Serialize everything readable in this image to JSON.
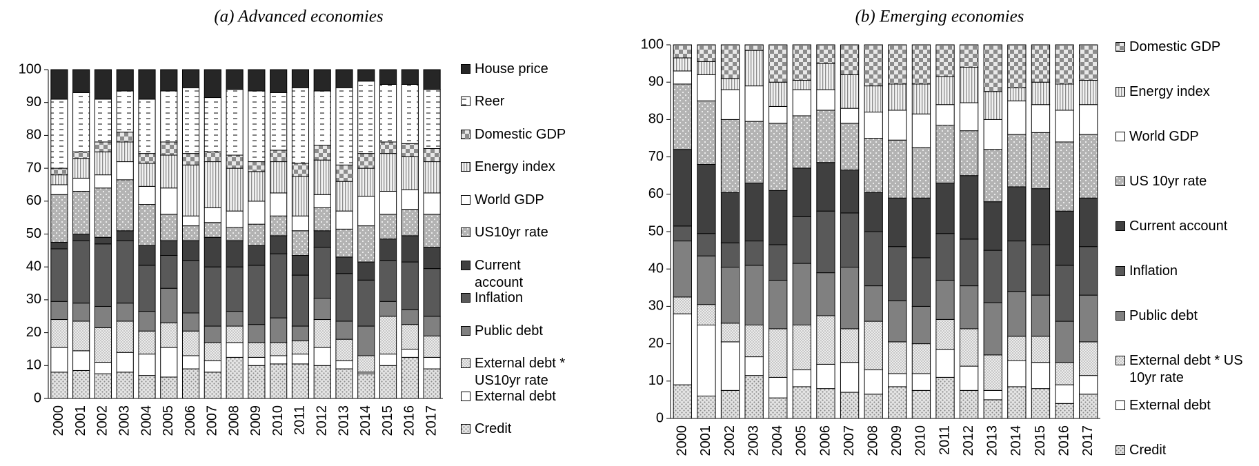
{
  "chart_data": [
    {
      "type": "bar",
      "stacked": true,
      "title": "(a) Advanced economies",
      "categories": [
        "2000",
        "2001",
        "2002",
        "2003",
        "2004",
        "2005",
        "2006",
        "2007",
        "2008",
        "2009",
        "2010",
        "2011",
        "2012",
        "2013",
        "2014",
        "2015",
        "2016",
        "2017"
      ],
      "ylim": [
        0,
        100
      ],
      "yticks": [
        0,
        10,
        20,
        30,
        40,
        50,
        60,
        70,
        80,
        90,
        100
      ],
      "series": [
        {
          "name": "Credit",
          "color": "#d9d9d9",
          "pattern": "dots",
          "values": [
            8,
            8.5,
            7.5,
            8,
            7,
            6.5,
            9,
            8,
            12.5,
            10,
            10.5,
            10.5,
            10,
            9,
            7.5,
            10,
            12.5,
            9
          ]
        },
        {
          "name": "External debt",
          "color": "#ffffff",
          "pattern": "solid",
          "values": [
            7.5,
            6,
            3.5,
            6,
            6.5,
            9,
            4,
            3.5,
            4.5,
            2.5,
            2.5,
            3,
            5.5,
            2.5,
            0.5,
            3.5,
            2.5,
            3.5
          ]
        },
        {
          "name": "External debt * US10yr rate",
          "color": "#e6e6e6",
          "pattern": "hatch",
          "values": [
            8.5,
            9,
            10.5,
            9.5,
            7,
            7.5,
            7.5,
            5.5,
            5,
            4.5,
            4,
            4,
            8.5,
            6.5,
            5,
            11.5,
            7.5,
            6.5
          ]
        },
        {
          "name": "Public debt",
          "color": "#808080",
          "pattern": "solid",
          "values": [
            5.5,
            5.5,
            6.5,
            5.5,
            6,
            10.5,
            5.5,
            5,
            4.5,
            5.5,
            7.5,
            4.5,
            6.5,
            5.5,
            9,
            4.5,
            4.5,
            6
          ]
        },
        {
          "name": "Inflation",
          "color": "#595959",
          "pattern": "solid",
          "values": [
            16,
            19,
            19,
            19,
            14,
            10,
            16,
            18,
            13.5,
            18,
            19.5,
            15.5,
            15.5,
            14.5,
            14,
            12.5,
            14.5,
            14.5
          ]
        },
        {
          "name": "Current account",
          "color": "#404040",
          "pattern": "solid",
          "values": [
            2,
            2,
            2,
            3,
            6,
            4.5,
            6,
            9,
            8,
            6,
            5.5,
            6,
            5,
            5,
            5.5,
            6.5,
            8,
            6.5
          ]
        },
        {
          "name": "US10yr rate",
          "color": "#bfbfbf",
          "pattern": "whitedots",
          "values": [
            14.5,
            13,
            15,
            15.5,
            12.5,
            8,
            4.5,
            4.5,
            4,
            6.5,
            6,
            7.5,
            7,
            8.5,
            11,
            7.5,
            8,
            10
          ]
        },
        {
          "name": "World GDP",
          "color": "#ffffff",
          "pattern": "solid",
          "values": [
            3,
            4,
            4,
            5.5,
            5.5,
            8,
            3,
            4.5,
            5,
            7,
            7,
            4.5,
            4,
            5.5,
            9,
            7,
            6,
            6.5
          ]
        },
        {
          "name": "Energy index",
          "color": "#e6e6e6",
          "pattern": "vlines",
          "values": [
            3,
            6,
            7,
            6,
            7,
            10,
            15.5,
            14,
            13,
            9,
            9.5,
            12,
            10.5,
            9,
            8.5,
            11.5,
            10,
            9.5
          ]
        },
        {
          "name": "Domestic GDP",
          "color": "#a6a6a6",
          "pattern": "checker",
          "values": [
            2,
            2,
            3,
            3,
            3,
            4,
            3.5,
            3,
            4,
            3,
            3.5,
            4,
            4.5,
            5,
            4.5,
            3.5,
            4,
            4
          ]
        },
        {
          "name": "Reer",
          "color": "#ffffff",
          "pattern": "dashes",
          "values": [
            21,
            18,
            13,
            12.5,
            16.5,
            15.5,
            20,
            16.5,
            20,
            21.5,
            17.5,
            23,
            16.5,
            23.5,
            22,
            17.5,
            18,
            18
          ]
        },
        {
          "name": "House price",
          "color": "#262626",
          "pattern": "solid",
          "values": [
            9,
            7,
            9,
            6.5,
            9,
            6.5,
            5.5,
            8.5,
            6,
            6.5,
            7,
            5.5,
            6.5,
            5.5,
            3.5,
            4.5,
            4.5,
            6
          ]
        }
      ]
    },
    {
      "type": "bar",
      "stacked": true,
      "title": "(b) Emerging economies",
      "categories": [
        "2000",
        "2001",
        "2002",
        "2003",
        "2004",
        "2005",
        "2006",
        "2007",
        "2008",
        "2009",
        "2010",
        "2011",
        "2012",
        "2013",
        "2014",
        "2015",
        "2016",
        "2017"
      ],
      "ylim": [
        0,
        100
      ],
      "yticks": [
        0,
        10,
        20,
        30,
        40,
        50,
        60,
        70,
        80,
        90,
        100
      ],
      "series": [
        {
          "name": "Credit",
          "color": "#d9d9d9",
          "pattern": "dots",
          "values": [
            9,
            6,
            7.5,
            11.5,
            5.5,
            8.5,
            8,
            7,
            6.5,
            8.5,
            7.5,
            11,
            7.5,
            5,
            8.5,
            8,
            4,
            6.5
          ]
        },
        {
          "name": "External debt",
          "color": "#ffffff",
          "pattern": "solid",
          "values": [
            19,
            19,
            13,
            5,
            5.5,
            4.5,
            6.5,
            8,
            6.5,
            3.5,
            4.5,
            7.5,
            6.5,
            2.5,
            7,
            7,
            5,
            5
          ]
        },
        {
          "name": "External debt * US 10yr rate",
          "color": "#e6e6e6",
          "pattern": "hatch",
          "values": [
            4.5,
            5.5,
            5,
            8.5,
            13,
            12,
            13,
            9,
            13,
            8.5,
            8,
            8,
            10,
            9.5,
            6.5,
            7,
            6,
            9
          ]
        },
        {
          "name": "Public debt",
          "color": "#808080",
          "pattern": "solid",
          "values": [
            15,
            13,
            15,
            16,
            13,
            16.5,
            11.5,
            16.5,
            9.5,
            11,
            10,
            10.5,
            11.5,
            14,
            12,
            11,
            11,
            12.5
          ]
        },
        {
          "name": "Inflation",
          "color": "#595959",
          "pattern": "solid",
          "values": [
            4,
            6,
            6.5,
            6.5,
            9.5,
            12.5,
            16.5,
            14.5,
            14.5,
            14.5,
            13,
            12.5,
            12.5,
            14,
            13.5,
            13.5,
            15,
            13
          ]
        },
        {
          "name": "Current account",
          "color": "#404040",
          "pattern": "solid",
          "values": [
            20.5,
            18.5,
            13.5,
            15.5,
            14.5,
            13,
            13,
            11.5,
            10.5,
            13,
            16,
            13.5,
            17,
            13,
            14.5,
            15,
            14.5,
            13
          ]
        },
        {
          "name": "US 10yr rate",
          "color": "#bfbfbf",
          "pattern": "whitedots",
          "values": [
            17.5,
            17,
            19.5,
            16.5,
            18,
            14,
            14,
            12.5,
            14.5,
            15.5,
            13.5,
            15.5,
            12,
            14,
            14,
            15,
            18.5,
            17
          ]
        },
        {
          "name": "World GDP",
          "color": "#ffffff",
          "pattern": "solid",
          "values": [
            3.5,
            7,
            8,
            9.5,
            4.5,
            7,
            5.5,
            4,
            7,
            8,
            9,
            5.5,
            7.5,
            8,
            9,
            7.5,
            8.5,
            8
          ]
        },
        {
          "name": "Energy index",
          "color": "#e6e6e6",
          "pattern": "vlines",
          "values": [
            3.5,
            3.5,
            3,
            9.5,
            6.5,
            2.5,
            7,
            9,
            7,
            7,
            8,
            7.5,
            9.5,
            7.5,
            3.5,
            6,
            7,
            6.5
          ]
        },
        {
          "name": "Domestic GDP",
          "color": "#a6a6a6",
          "pattern": "checker",
          "values": [
            3.5,
            4.5,
            9,
            1.5,
            10,
            9.5,
            5,
            8,
            11,
            10.5,
            10.5,
            8.5,
            6,
            12.5,
            11.5,
            10,
            10.5,
            9.5
          ]
        }
      ]
    }
  ]
}
